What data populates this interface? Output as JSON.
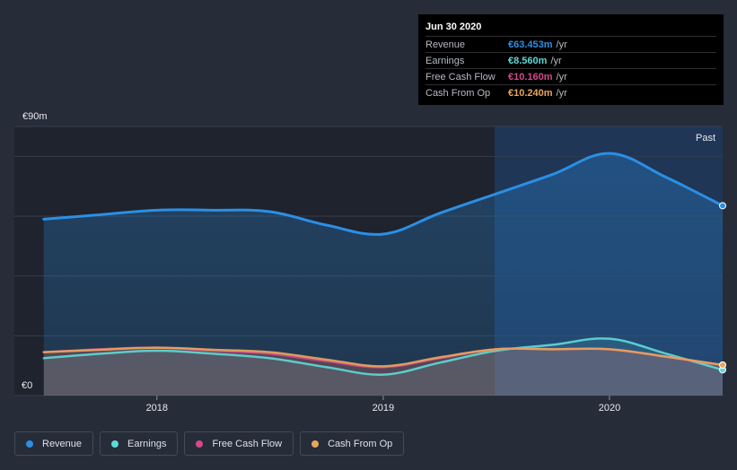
{
  "chart_data": {
    "type": "area",
    "y_axis": {
      "top_label": "€90m",
      "bottom_label": "€0",
      "ylim": [
        0,
        90
      ]
    },
    "x_axis": {
      "tick_labels": [
        "2018",
        "2019",
        "2020"
      ],
      "ticks": [
        2018,
        2019,
        2020
      ],
      "xlim": [
        2017.37,
        2020.5
      ]
    },
    "grid": true,
    "past_label": "Past",
    "series": [
      {
        "name": "Revenue",
        "color": "#2b8fe5",
        "points": [
          [
            2017.5,
            59
          ],
          [
            2017.75,
            60.5
          ],
          [
            2018.0,
            62
          ],
          [
            2018.25,
            62
          ],
          [
            2018.5,
            61.5
          ],
          [
            2018.75,
            57
          ],
          [
            2019.0,
            54
          ],
          [
            2019.25,
            61
          ],
          [
            2019.5,
            67.5
          ],
          [
            2019.75,
            74
          ],
          [
            2020.0,
            81
          ],
          [
            2020.25,
            73
          ],
          [
            2020.5,
            63.5
          ]
        ]
      },
      {
        "name": "Earnings",
        "color": "#5fd9d6",
        "points": [
          [
            2017.5,
            12.5
          ],
          [
            2017.75,
            14
          ],
          [
            2018.0,
            15
          ],
          [
            2018.25,
            14
          ],
          [
            2018.5,
            12.5
          ],
          [
            2018.75,
            9.5
          ],
          [
            2019.0,
            7
          ],
          [
            2019.25,
            11
          ],
          [
            2019.5,
            15
          ],
          [
            2019.75,
            17
          ],
          [
            2020.0,
            19
          ],
          [
            2020.25,
            14
          ],
          [
            2020.5,
            8.6
          ]
        ]
      },
      {
        "name": "Free Cash Flow",
        "color": "#d3498a",
        "points": [
          [
            2017.5,
            14.5
          ],
          [
            2017.75,
            15.5
          ],
          [
            2018.0,
            16
          ],
          [
            2018.25,
            15
          ],
          [
            2018.5,
            14
          ],
          [
            2018.75,
            11.5
          ],
          [
            2019.0,
            9.5
          ],
          [
            2019.25,
            12.5
          ],
          [
            2019.5,
            15.5
          ],
          [
            2019.75,
            15.5
          ],
          [
            2020.0,
            15.5
          ],
          [
            2020.25,
            13
          ],
          [
            2020.5,
            10.2
          ]
        ]
      },
      {
        "name": "Cash From Op",
        "color": "#e9a65d",
        "points": [
          [
            2017.5,
            14.5
          ],
          [
            2017.75,
            15.3
          ],
          [
            2018.0,
            16
          ],
          [
            2018.25,
            15.3
          ],
          [
            2018.5,
            14.5
          ],
          [
            2018.75,
            12
          ],
          [
            2019.0,
            9.8
          ],
          [
            2019.25,
            12.8
          ],
          [
            2019.5,
            15.5
          ],
          [
            2019.75,
            15.5
          ],
          [
            2020.0,
            15.5
          ],
          [
            2020.25,
            13
          ],
          [
            2020.5,
            10.2
          ]
        ]
      }
    ]
  },
  "tooltip": {
    "date": "Jun 30 2020",
    "rows": [
      {
        "label": "Revenue",
        "value": "€63.453m",
        "unit": "/yr",
        "color": "#2b8fe5"
      },
      {
        "label": "Earnings",
        "value": "€8.560m",
        "unit": "/yr",
        "color": "#5fd9d6"
      },
      {
        "label": "Free Cash Flow",
        "value": "€10.160m",
        "unit": "/yr",
        "color": "#d3498a"
      },
      {
        "label": "Cash From Op",
        "value": "€10.240m",
        "unit": "/yr",
        "color": "#e9a65d"
      }
    ]
  },
  "legend": [
    {
      "label": "Revenue",
      "color": "#2b8fe5"
    },
    {
      "label": "Earnings",
      "color": "#5fd9d6"
    },
    {
      "label": "Free Cash Flow",
      "color": "#d3498a"
    },
    {
      "label": "Cash From Op",
      "color": "#e9a65d"
    }
  ]
}
